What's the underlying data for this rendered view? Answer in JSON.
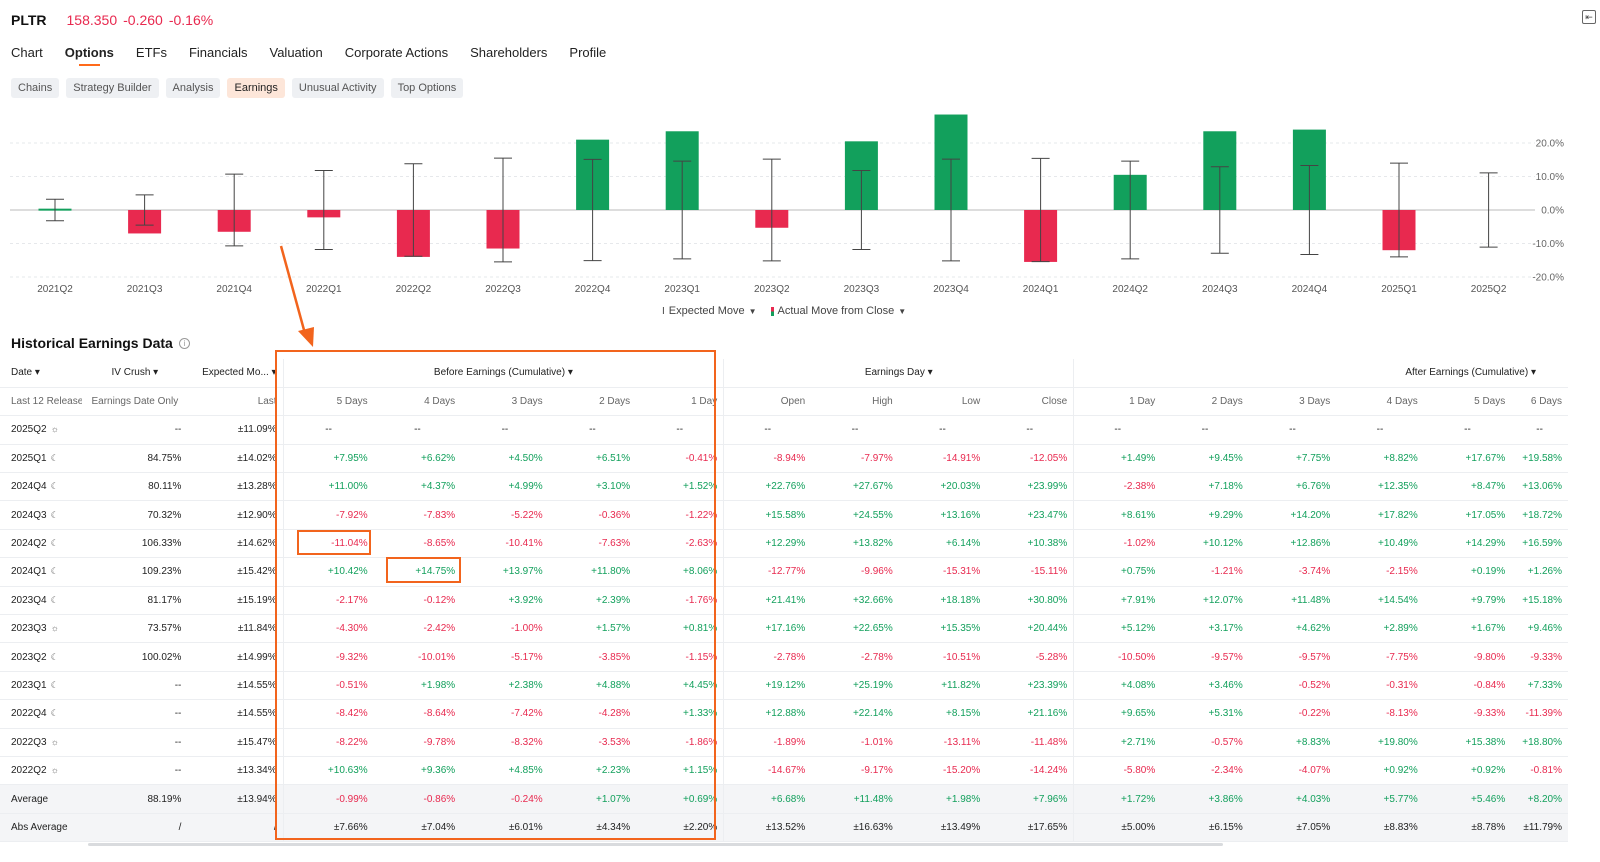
{
  "header": {
    "symbol": "PLTR",
    "price": "158.350",
    "change": "-0.260",
    "pct": "-0.16%"
  },
  "tabs": [
    "Chart",
    "Options",
    "ETFs",
    "Financials",
    "Valuation",
    "Corporate Actions",
    "Shareholders",
    "Profile"
  ],
  "active_tab": "Options",
  "subtabs": [
    "Chains",
    "Strategy Builder",
    "Analysis",
    "Earnings",
    "Unusual Activity",
    "Top Options"
  ],
  "active_subtab": "Earnings",
  "colors": {
    "positive": "#12a05c",
    "negative": "#e8294f",
    "accent": "#f2641d"
  },
  "legend": {
    "expected": "Expected Move",
    "actual": "Actual Move from Close"
  },
  "chart_data": {
    "type": "bar",
    "categories": [
      "2021Q2",
      "2021Q3",
      "2021Q4",
      "2022Q1",
      "2022Q2",
      "2022Q3",
      "2022Q4",
      "2023Q1",
      "2023Q2",
      "2023Q3",
      "2023Q4",
      "2024Q1",
      "2024Q2",
      "2024Q3",
      "2024Q4",
      "2025Q1",
      "2025Q2"
    ],
    "series": [
      {
        "name": "Actual Move from Close",
        "values": [
          0.4,
          -7.0,
          -6.5,
          -2.2,
          -14.0,
          -11.5,
          21.0,
          23.5,
          -5.3,
          20.5,
          28.5,
          -15.5,
          10.5,
          23.5,
          24.0,
          -12.0,
          null
        ]
      },
      {
        "name": "Expected Move",
        "values": [
          3.2,
          4.5,
          10.7,
          11.8,
          13.8,
          15.5,
          15.1,
          14.6,
          15.2,
          11.8,
          15.2,
          15.4,
          14.6,
          12.9,
          13.3,
          14.0,
          11.1
        ]
      }
    ],
    "ylim": [
      -20,
      27
    ],
    "yticks": [
      "20.0%",
      "10.0%",
      "0.0%",
      "-10.0%",
      "-20.0%"
    ],
    "yticks_values": [
      20,
      10,
      0,
      -10,
      -20
    ]
  },
  "section_title": "Historical Earnings Data",
  "groups": {
    "before": "Before Earnings (Cumulative)",
    "day": "Earnings Day",
    "after": "After Earnings (Cumulative)"
  },
  "col_headers": {
    "date": "Date",
    "iv": "IV Crush",
    "exp": "Expected Mo..."
  },
  "sub_headers": [
    "Last 12 Release",
    "Earnings Date Only",
    "Last",
    "5 Days",
    "4 Days",
    "3 Days",
    "2 Days",
    "1 Day",
    "Open",
    "High",
    "Low",
    "Close",
    "1 Day",
    "2 Days",
    "3 Days",
    "4 Days",
    "5 Days",
    "6 Days"
  ],
  "rows": [
    [
      "2025Q2",
      "sun",
      "--",
      "±11.09%",
      "--",
      "--",
      "--",
      "--",
      "--",
      "--",
      "--",
      "--",
      "--",
      "--",
      "--",
      "--",
      "--",
      "--",
      "--"
    ],
    [
      "2025Q1",
      "moon",
      "84.75%",
      "±14.02%",
      "+7.95%",
      "+6.62%",
      "+4.50%",
      "+6.51%",
      "-0.41%",
      "-8.94%",
      "-7.97%",
      "-14.91%",
      "-12.05%",
      "+1.49%",
      "+9.45%",
      "+7.75%",
      "+8.82%",
      "+17.67%",
      "+19.58%"
    ],
    [
      "2024Q4",
      "moon",
      "80.11%",
      "±13.28%",
      "+11.00%",
      "+4.37%",
      "+4.99%",
      "+3.10%",
      "+1.52%",
      "+22.76%",
      "+27.67%",
      "+20.03%",
      "+23.99%",
      "-2.38%",
      "+7.18%",
      "+6.76%",
      "+12.35%",
      "+8.47%",
      "+13.06%"
    ],
    [
      "2024Q3",
      "moon",
      "70.32%",
      "±12.90%",
      "-7.92%",
      "-7.83%",
      "-5.22%",
      "-0.36%",
      "-1.22%",
      "+15.58%",
      "+24.55%",
      "+13.16%",
      "+23.47%",
      "+8.61%",
      "+9.29%",
      "+14.20%",
      "+17.82%",
      "+17.05%",
      "+18.72%"
    ],
    [
      "2024Q2",
      "moon",
      "106.33%",
      "±14.62%",
      "-11.04%",
      "-8.65%",
      "-10.41%",
      "-7.63%",
      "-2.63%",
      "+12.29%",
      "+13.82%",
      "+6.14%",
      "+10.38%",
      "-1.02%",
      "+10.12%",
      "+12.86%",
      "+10.49%",
      "+14.29%",
      "+16.59%"
    ],
    [
      "2024Q1",
      "moon",
      "109.23%",
      "±15.42%",
      "+10.42%",
      "+14.75%",
      "+13.97%",
      "+11.80%",
      "+8.06%",
      "-12.77%",
      "-9.96%",
      "-15.31%",
      "-15.11%",
      "+0.75%",
      "-1.21%",
      "-3.74%",
      "-2.15%",
      "+0.19%",
      "+1.26%"
    ],
    [
      "2023Q4",
      "moon",
      "81.17%",
      "±15.19%",
      "-2.17%",
      "-0.12%",
      "+3.92%",
      "+2.39%",
      "-1.76%",
      "+21.41%",
      "+32.66%",
      "+18.18%",
      "+30.80%",
      "+7.91%",
      "+12.07%",
      "+11.48%",
      "+14.54%",
      "+9.79%",
      "+15.18%"
    ],
    [
      "2023Q3",
      "sun",
      "73.57%",
      "±11.84%",
      "-4.30%",
      "-2.42%",
      "-1.00%",
      "+1.57%",
      "+0.81%",
      "+17.16%",
      "+22.65%",
      "+15.35%",
      "+20.44%",
      "+5.12%",
      "+3.17%",
      "+4.62%",
      "+2.89%",
      "+1.67%",
      "+9.46%"
    ],
    [
      "2023Q2",
      "moon",
      "100.02%",
      "±14.99%",
      "-9.32%",
      "-10.01%",
      "-5.17%",
      "-3.85%",
      "-1.15%",
      "-2.78%",
      "-2.78%",
      "-10.51%",
      "-5.28%",
      "-10.50%",
      "-9.57%",
      "-9.57%",
      "-7.75%",
      "-9.80%",
      "-9.33%"
    ],
    [
      "2023Q1",
      "moon",
      "--",
      "±14.55%",
      "-0.51%",
      "+1.98%",
      "+2.38%",
      "+4.88%",
      "+4.45%",
      "+19.12%",
      "+25.19%",
      "+11.82%",
      "+23.39%",
      "+4.08%",
      "+3.46%",
      "-0.52%",
      "-0.31%",
      "-0.84%",
      "+7.33%"
    ],
    [
      "2022Q4",
      "moon",
      "--",
      "±14.55%",
      "-8.42%",
      "-8.64%",
      "-7.42%",
      "-4.28%",
      "+1.33%",
      "+12.88%",
      "+22.14%",
      "+8.15%",
      "+21.16%",
      "+9.65%",
      "+5.31%",
      "-0.22%",
      "-8.13%",
      "-9.33%",
      "-11.39%"
    ],
    [
      "2022Q3",
      "sun",
      "--",
      "±15.47%",
      "-8.22%",
      "-9.78%",
      "-8.32%",
      "-3.53%",
      "-1.86%",
      "-1.89%",
      "-1.01%",
      "-13.11%",
      "-11.48%",
      "+2.71%",
      "-0.57%",
      "+8.83%",
      "+19.80%",
      "+15.38%",
      "+18.80%"
    ],
    [
      "2022Q2",
      "sun",
      "--",
      "±13.34%",
      "+10.63%",
      "+9.36%",
      "+4.85%",
      "+2.23%",
      "+1.15%",
      "-14.67%",
      "-9.17%",
      "-15.20%",
      "-14.24%",
      "-5.80%",
      "-2.34%",
      "-4.07%",
      "+0.92%",
      "+0.92%",
      "-0.81%"
    ]
  ],
  "summary": [
    [
      "Average",
      "",
      "88.19%",
      "±13.94%",
      "-0.99%",
      "-0.86%",
      "-0.24%",
      "+1.07%",
      "+0.69%",
      "+6.68%",
      "+11.48%",
      "+1.98%",
      "+7.96%",
      "+1.72%",
      "+3.86%",
      "+4.03%",
      "+5.77%",
      "+5.46%",
      "+8.20%"
    ],
    [
      "Abs Average",
      "",
      "/",
      "/",
      "±7.66%",
      "±7.04%",
      "±6.01%",
      "±4.34%",
      "±2.20%",
      "±13.52%",
      "±16.63%",
      "±13.49%",
      "±17.65%",
      "±5.00%",
      "±6.15%",
      "±7.05%",
      "±8.83%",
      "±8.78%",
      "±11.79%"
    ]
  ]
}
